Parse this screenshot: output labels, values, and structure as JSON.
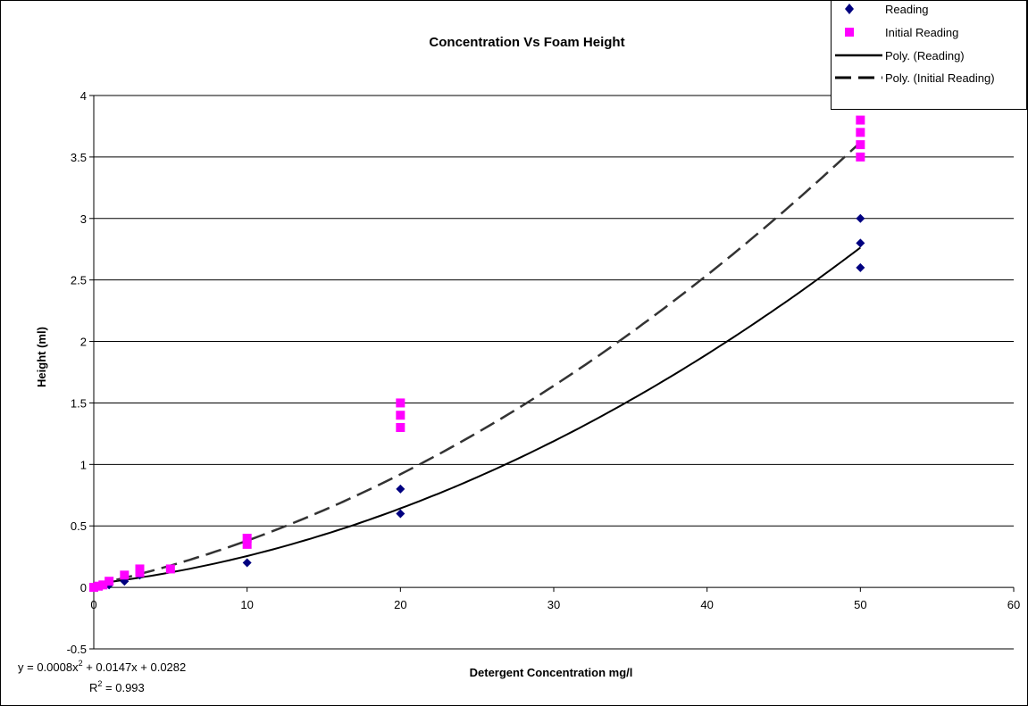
{
  "chart_data": {
    "type": "scatter",
    "title": "Concentration Vs Foam Height",
    "xlabel": "Detergent Concentration mg/l",
    "ylabel": "Height (ml)",
    "xlim": [
      0,
      60
    ],
    "ylim": [
      -0.5,
      4
    ],
    "x_ticks": [
      "0",
      "10",
      "20",
      "30",
      "40",
      "50",
      "60"
    ],
    "y_ticks": [
      "-0.5",
      "0",
      "0.5",
      "1",
      "1.5",
      "2",
      "2.5",
      "3",
      "3.5",
      "4"
    ],
    "grid": "horizontal",
    "legend_position": "top-right",
    "series": [
      {
        "name": "Reading",
        "marker": "diamond",
        "color": "#000080",
        "points": [
          [
            0,
            0
          ],
          [
            0.5,
            0.01
          ],
          [
            1,
            0.02
          ],
          [
            2,
            0.05
          ],
          [
            3,
            0.1
          ],
          [
            10,
            0.2
          ],
          [
            20,
            0.6
          ],
          [
            20,
            0.8
          ],
          [
            50,
            2.6
          ],
          [
            50,
            2.8
          ],
          [
            50,
            3.0
          ]
        ]
      },
      {
        "name": "Initial Reading",
        "marker": "square",
        "color": "#FF00FF",
        "points": [
          [
            0,
            0
          ],
          [
            0.3,
            0.01
          ],
          [
            0.6,
            0.02
          ],
          [
            1,
            0.05
          ],
          [
            2,
            0.1
          ],
          [
            3,
            0.12
          ],
          [
            3,
            0.15
          ],
          [
            5,
            0.15
          ],
          [
            10,
            0.35
          ],
          [
            10,
            0.4
          ],
          [
            20,
            1.3
          ],
          [
            20,
            1.4
          ],
          [
            20,
            1.5
          ],
          [
            50,
            3.5
          ],
          [
            50,
            3.6
          ],
          [
            50,
            3.7
          ],
          [
            50,
            3.8
          ]
        ]
      }
    ],
    "trendlines": [
      {
        "name": "Poly. (Reading)",
        "style": "solid",
        "color": "#000000",
        "coeffs": [
          0.0008,
          0.0147,
          0.0282
        ],
        "x_range": [
          0,
          50
        ]
      },
      {
        "name": "Poly. (Initial Reading)",
        "style": "dashed",
        "color": "#333333",
        "coeffs": [
          0.0009,
          0.027,
          0.02
        ],
        "x_range": [
          0,
          50
        ]
      }
    ],
    "annotations": {
      "equation_prefix": "y = 0.0008x",
      "equation_exp": "2",
      "equation_suffix": " + 0.0147x + 0.0282",
      "r2_prefix": "R",
      "r2_exp": "2",
      "r2_suffix": " = 0.993"
    }
  }
}
